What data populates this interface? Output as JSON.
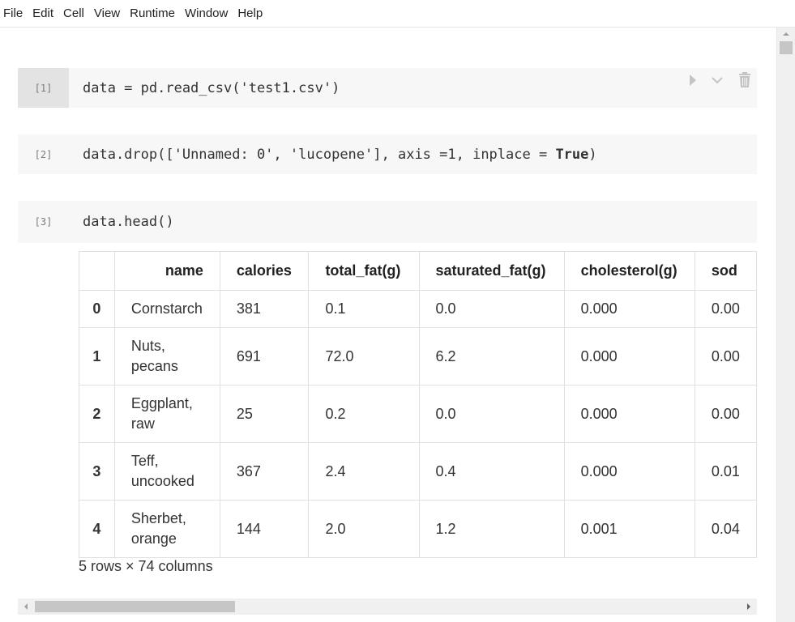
{
  "menubar": {
    "items": [
      "File",
      "Edit",
      "Cell",
      "View",
      "Runtime",
      "Window",
      "Help"
    ]
  },
  "cells": [
    {
      "prompt": "[1]",
      "code_parts": {
        "a": "data = pd.read_csv(",
        "b": "'test1.csv'",
        "c": ")"
      }
    },
    {
      "prompt": "[2]",
      "code_parts": {
        "a": "data.drop([",
        "b": "'Unnamed: 0'",
        "c": ", ",
        "d": "'lucopene'",
        "e": "], axis =1, inplace = ",
        "f": "True",
        "g": ")"
      }
    },
    {
      "prompt": "[3]",
      "code": "data.head()"
    }
  ],
  "table": {
    "columns": [
      "",
      "name",
      "calories",
      "total_fat(g)",
      "saturated_fat(g)",
      "cholesterol(g)",
      "sod"
    ],
    "rows": [
      {
        "index": "0",
        "name": "Cornstarch",
        "calories": "381",
        "total_fat": "0.1",
        "saturated_fat": "0.0",
        "cholesterol": "0.000",
        "sodium": "0.00"
      },
      {
        "index": "1",
        "name": "Nuts, pecans",
        "calories": "691",
        "total_fat": "72.0",
        "saturated_fat": "6.2",
        "cholesterol": "0.000",
        "sodium": "0.00"
      },
      {
        "index": "2",
        "name": "Eggplant, raw",
        "calories": "25",
        "total_fat": "0.2",
        "saturated_fat": "0.0",
        "cholesterol": "0.000",
        "sodium": "0.00"
      },
      {
        "index": "3",
        "name": "Teff, uncooked",
        "calories": "367",
        "total_fat": "2.4",
        "saturated_fat": "0.4",
        "cholesterol": "0.000",
        "sodium": "0.01"
      },
      {
        "index": "4",
        "name": "Sherbet, orange",
        "calories": "144",
        "total_fat": "2.0",
        "saturated_fat": "1.2",
        "cholesterol": "0.001",
        "sodium": "0.04"
      }
    ],
    "shape_note": "5 rows × 74 columns"
  },
  "colors": {
    "cell_background": "#f7f7f7",
    "selected_prompt_background": "#e3e3e3",
    "scrollbar_thumb": "#c6c6c6"
  },
  "icons": [
    "run-icon",
    "chevron-down-icon",
    "trash-icon",
    "scroll-left-icon",
    "scroll-right-icon",
    "scroll-up-icon"
  ]
}
